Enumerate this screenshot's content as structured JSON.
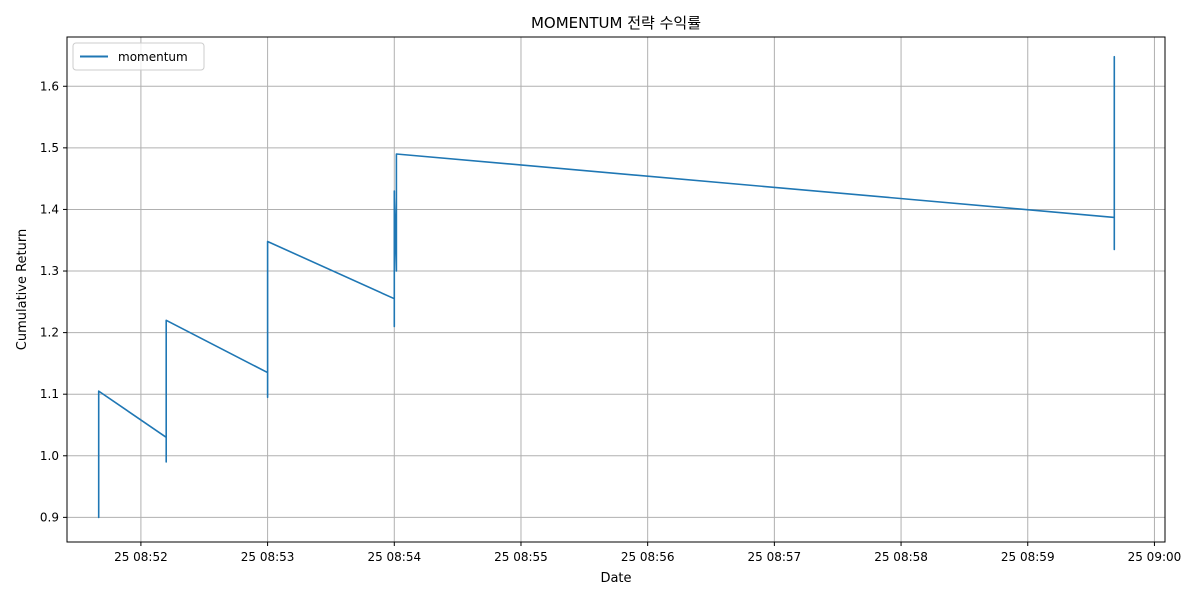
{
  "chart_data": {
    "type": "line",
    "title": "MOMENTUM 전략 수익률",
    "xlabel": "Date",
    "ylabel": "Cumulative Return",
    "xlim": [
      "08:51:25",
      "09:00:05"
    ],
    "ylim": [
      0.86,
      1.68
    ],
    "x_ticks": [
      "25 08:52",
      "25 08:53",
      "25 08:54",
      "25 08:55",
      "25 08:56",
      "25 08:57",
      "25 08:58",
      "25 08:59",
      "25 09:00"
    ],
    "y_ticks": [
      "0.9",
      "1.0",
      "1.1",
      "1.2",
      "1.3",
      "1.4",
      "1.5",
      "1.6"
    ],
    "grid": true,
    "legend": "upper left",
    "series": [
      {
        "name": "momentum",
        "color": "#1f77b4",
        "x": [
          "08:51:40",
          "08:51:40",
          "08:51:40",
          "08:51:40",
          "08:51:40",
          "08:51:40",
          "08:52:12",
          "08:52:12",
          "08:52:12",
          "08:52:12",
          "08:52:12",
          "08:53:00",
          "08:53:00",
          "08:53:00",
          "08:53:00",
          "08:53:00",
          "08:54:00",
          "08:54:00",
          "08:54:00",
          "08:54:00",
          "08:54:00",
          "08:54:01",
          "08:54:01",
          "08:54:01",
          "08:59:41",
          "08:59:41",
          "08:59:41",
          "08:59:41",
          "08:59:41"
        ],
        "y": [
          1.0,
          1.06,
          0.9,
          0.96,
          1.04,
          1.105,
          1.03,
          1.17,
          0.99,
          1.1,
          1.22,
          1.135,
          1.3,
          1.095,
          1.28,
          1.348,
          1.255,
          1.21,
          1.43,
          1.36,
          1.42,
          1.3,
          1.43,
          1.49,
          1.387,
          1.58,
          1.335,
          1.648,
          1.5
        ]
      }
    ]
  }
}
